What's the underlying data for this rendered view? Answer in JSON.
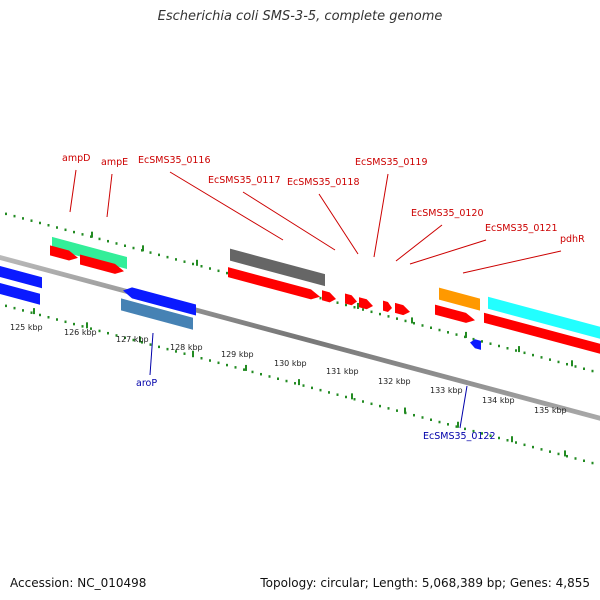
{
  "title": "Escherichia coli SMS-3-5, complete genome",
  "footer": {
    "accession": "Accession: NC_010498",
    "summary": "Topology: circular; Length: 5,068,389 bp; Genes: 4,855"
  },
  "colors": {
    "backbone": "#8a8a8a",
    "ticks": "#228b22",
    "label_forward": "#cc0000",
    "label_reverse": "#0000aa",
    "cds": "#ff0000",
    "blue": "#0a1aff",
    "steelblue": "#4682b4",
    "green": "#33ee99",
    "grey": "#666666",
    "orange": "#ff9900",
    "cyan": "#22ffff"
  },
  "scale_labels": [
    "125 kbp",
    "126 kbp",
    "127 kbp",
    "128 kbp",
    "129 kbp",
    "130 kbp",
    "131 kbp",
    "132 kbp",
    "133 kbp",
    "134 kbp",
    "135 kbp"
  ],
  "gene_labels": {
    "forward": [
      "ampD",
      "ampE",
      "EcSMS35_0116",
      "EcSMS35_0117",
      "EcSMS35_0118",
      "EcSMS35_0119",
      "EcSMS35_0120",
      "EcSMS35_0121",
      "pdhR"
    ],
    "reverse": [
      "aroP",
      "EcSMS35_0122"
    ]
  }
}
